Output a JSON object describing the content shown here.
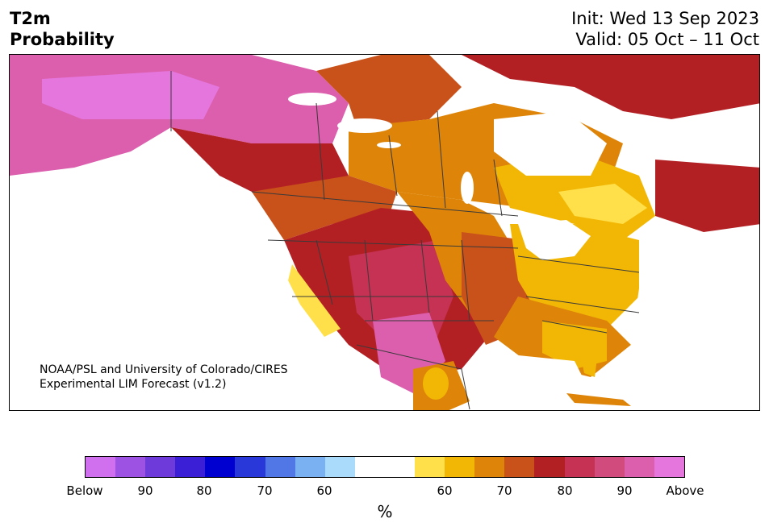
{
  "header": {
    "title_line1": "T2m",
    "title_line2": "Probability",
    "init": "Init: Wed 13 Sep 2023",
    "valid": "Valid: 05 Oct – 11 Oct"
  },
  "credit": {
    "line1": "NOAA/PSL and University of Colorado/CIRES",
    "line2": "Experimental LIM Forecast (v1.2)"
  },
  "colorbar": {
    "unit_label": "%",
    "below_colors": [
      "#d070ee",
      "#9d52e4",
      "#6e3ad9",
      "#3a1fd6",
      "#0000d0",
      "#2939d9",
      "#5177e6",
      "#79b1f2",
      "#aadbfb"
    ],
    "neutral_color": "#ffffff",
    "above_colors": [
      "#ffe04a",
      "#f2b705",
      "#de8509",
      "#c9511a",
      "#b32024",
      "#c53253",
      "#d14c7c",
      "#dc5fae",
      "#e576de"
    ],
    "ticks": [
      "Below",
      "90",
      "80",
      "70",
      "60",
      "60",
      "70",
      "80",
      "90",
      "Above"
    ]
  }
}
